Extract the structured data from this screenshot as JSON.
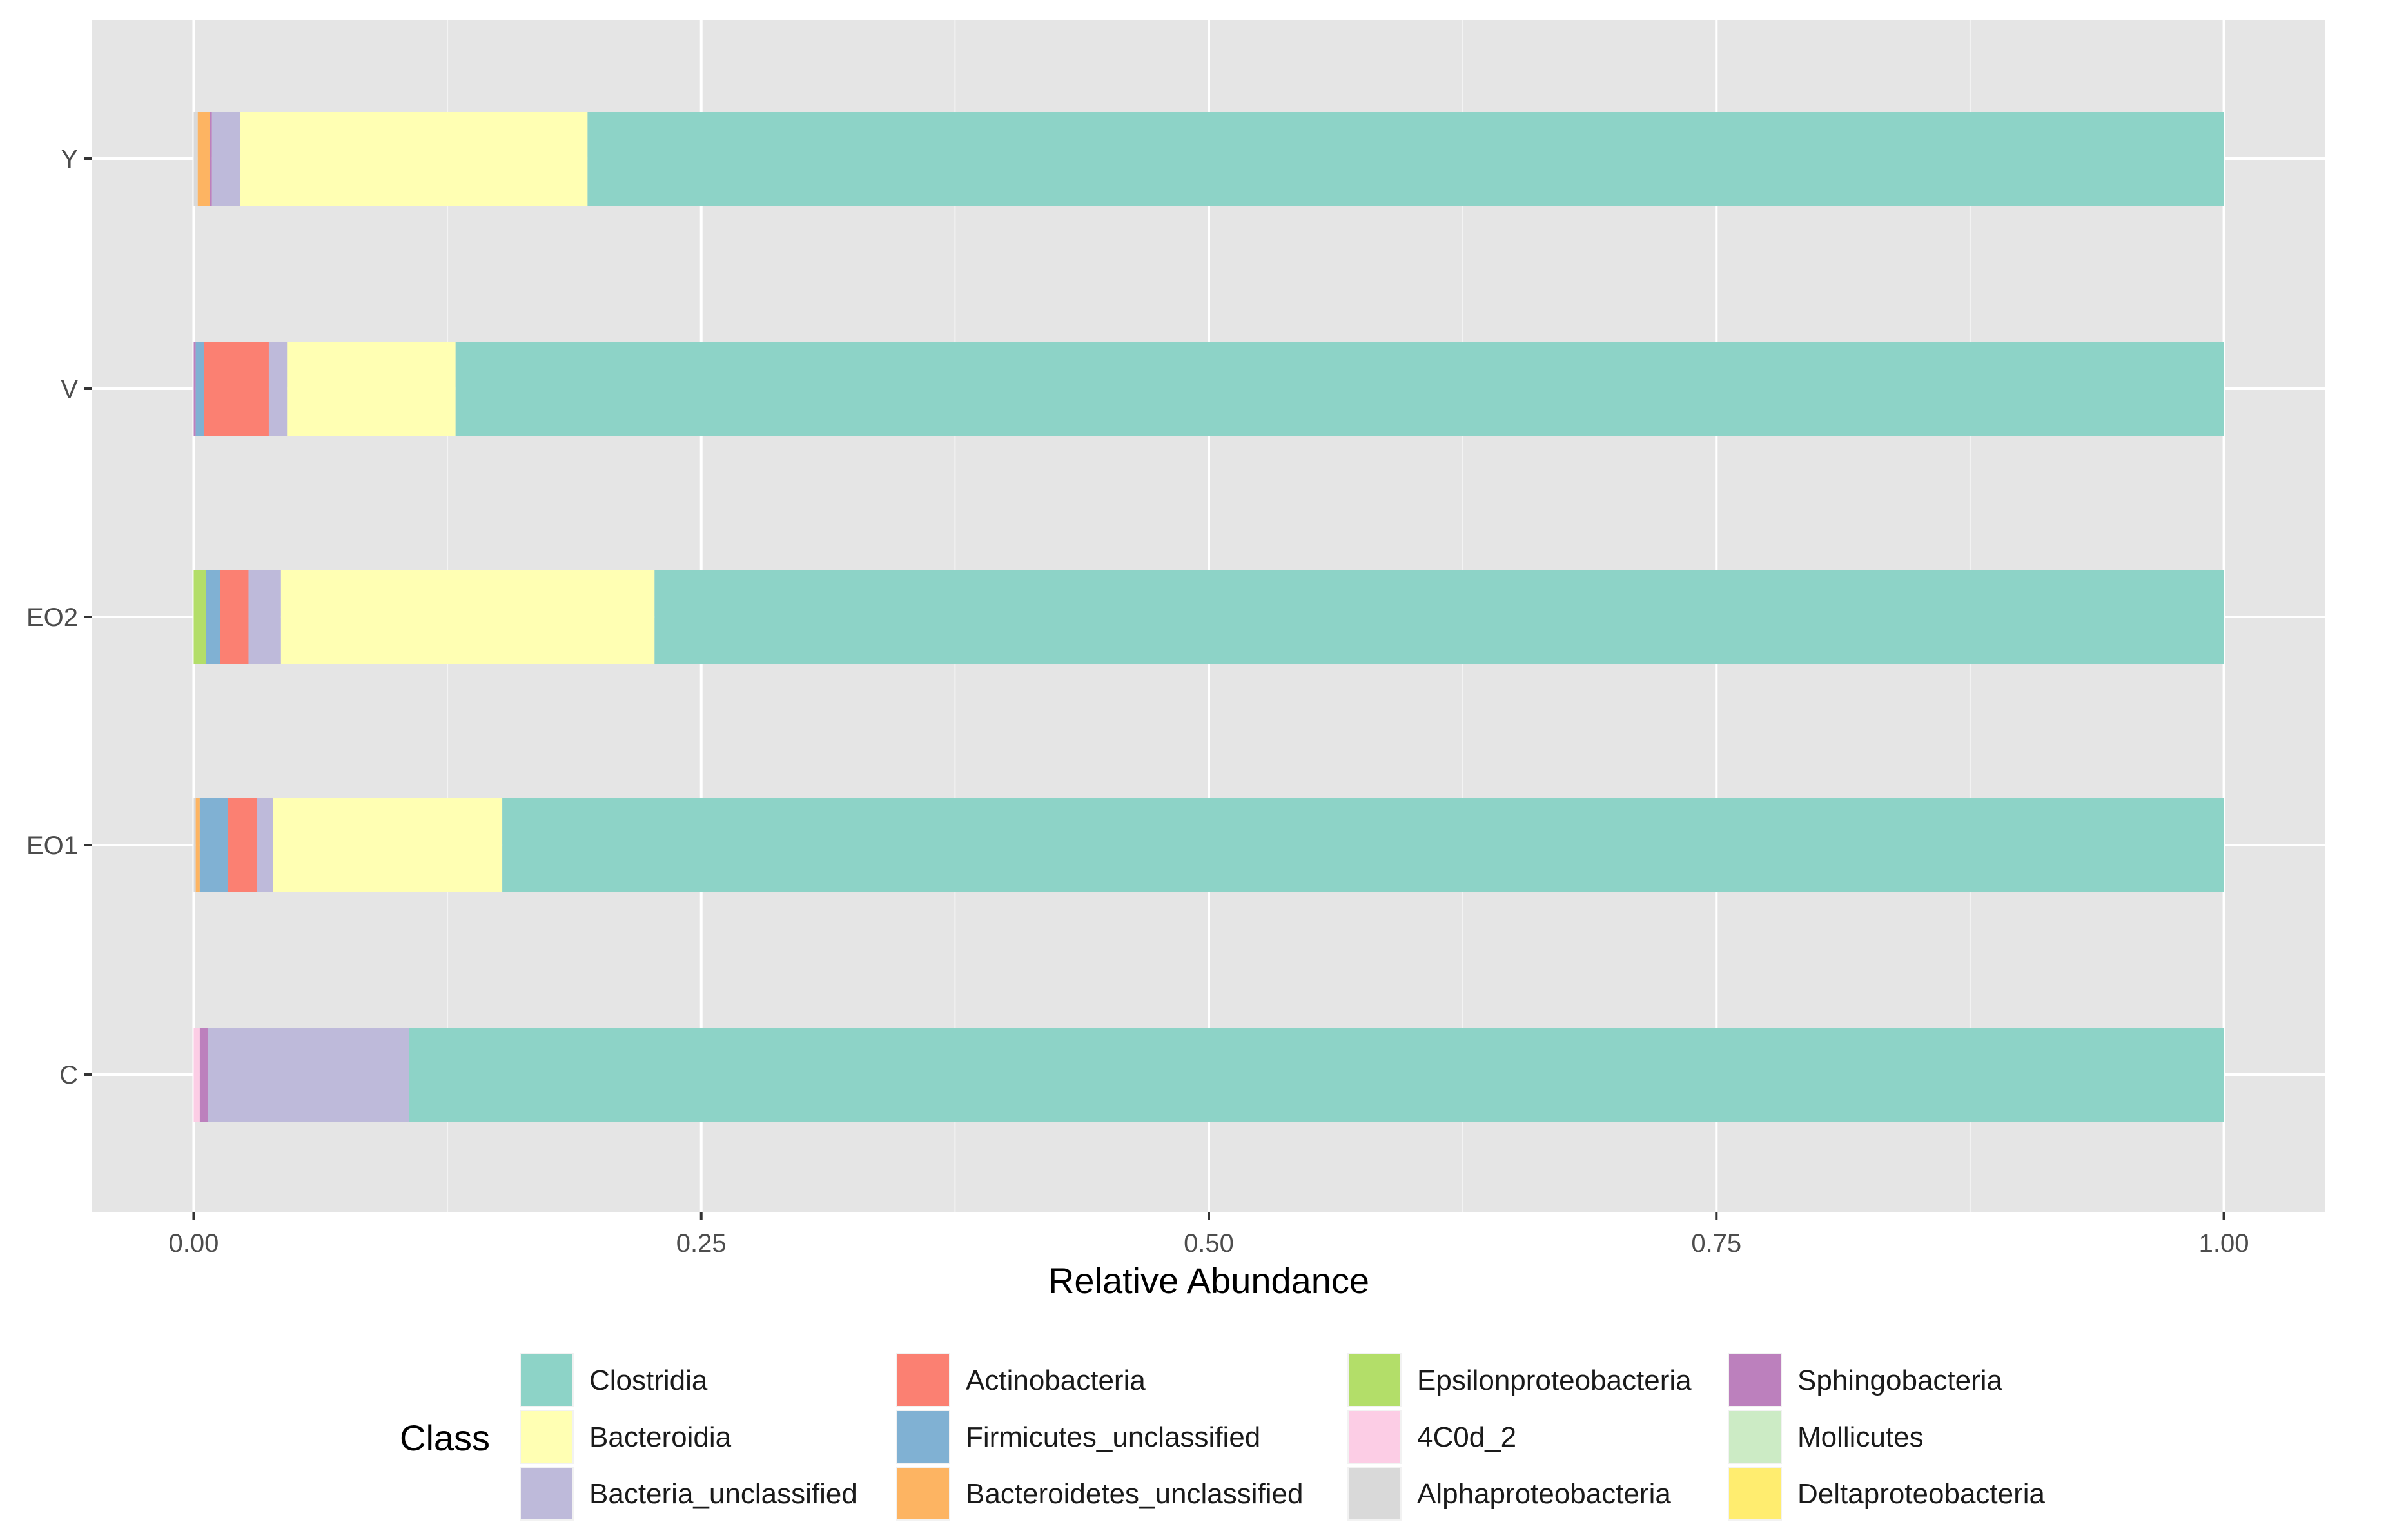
{
  "chart_data": {
    "type": "bar",
    "orientation": "horizontal",
    "stacked": true,
    "title": "",
    "xlabel": "Relative Abundance",
    "ylabel": "",
    "xlim": [
      -0.05,
      1.05
    ],
    "xticks": [
      "0.00",
      "0.25",
      "0.50",
      "0.75",
      "1.00"
    ],
    "xtick_values": [
      0,
      0.25,
      0.5,
      0.75,
      1.0
    ],
    "grid": true,
    "legend_position": "bottom",
    "categories": [
      "Y",
      "V",
      "EO2",
      "EO1",
      "C"
    ],
    "series": [
      {
        "name": "Alphaproteobacteria",
        "color": "#d9d9d9",
        "values": [
          0.002,
          0.0,
          0.0,
          0.001,
          0.0
        ]
      },
      {
        "name": "4C0d_2",
        "color": "#fccde5",
        "values": [
          0.0,
          0.0,
          0.0,
          0.0,
          0.003
        ]
      },
      {
        "name": "Epsilonproteobacteria",
        "color": "#b3de69",
        "values": [
          0.0,
          0.0,
          0.006,
          0.0,
          0.0
        ]
      },
      {
        "name": "Bacteroidetes_unclassified",
        "color": "#fdb462",
        "values": [
          0.006,
          0.0,
          0.0,
          0.002,
          0.0
        ]
      },
      {
        "name": "Sphingobacteria",
        "color": "#bc80bd",
        "values": [
          0.001,
          0.001,
          0.0,
          0.0,
          0.004
        ]
      },
      {
        "name": "Firmicutes_unclassified",
        "color": "#80b1d3",
        "values": [
          0.0,
          0.004,
          0.007,
          0.014,
          0.0
        ]
      },
      {
        "name": "Actinobacteria",
        "color": "#fb8072",
        "values": [
          0.0,
          0.032,
          0.014,
          0.014,
          0.0
        ]
      },
      {
        "name": "Bacteria_unclassified",
        "color": "#bebada",
        "values": [
          0.014,
          0.009,
          0.016,
          0.008,
          0.099
        ]
      },
      {
        "name": "Bacteroidia",
        "color": "#ffffb3",
        "values": [
          0.171,
          0.083,
          0.184,
          0.113,
          0.0
        ]
      },
      {
        "name": "Clostridia",
        "color": "#8dd3c7",
        "values": [
          0.806,
          0.871,
          0.773,
          0.848,
          0.894
        ]
      }
    ],
    "legend": {
      "title": "Class",
      "columns": [
        [
          {
            "label": "Clostridia",
            "color": "#8dd3c7"
          },
          {
            "label": "Bacteroidia",
            "color": "#ffffb3"
          },
          {
            "label": "Bacteria_unclassified",
            "color": "#bebada"
          }
        ],
        [
          {
            "label": "Actinobacteria",
            "color": "#fb8072"
          },
          {
            "label": "Firmicutes_unclassified",
            "color": "#80b1d3"
          },
          {
            "label": "Bacteroidetes_unclassified",
            "color": "#fdb462"
          }
        ],
        [
          {
            "label": "Epsilonproteobacteria",
            "color": "#b3de69"
          },
          {
            "label": "4C0d_2",
            "color": "#fccde5"
          },
          {
            "label": "Alphaproteobacteria",
            "color": "#d9d9d9"
          }
        ],
        [
          {
            "label": "Sphingobacteria",
            "color": "#bc80bd"
          },
          {
            "label": "Mollicutes",
            "color": "#ccebc5"
          },
          {
            "label": "Deltaproteobacteria",
            "color": "#ffed6f"
          }
        ]
      ]
    },
    "panel_background": "#e5e5e5",
    "grid_color": "#ffffff"
  }
}
